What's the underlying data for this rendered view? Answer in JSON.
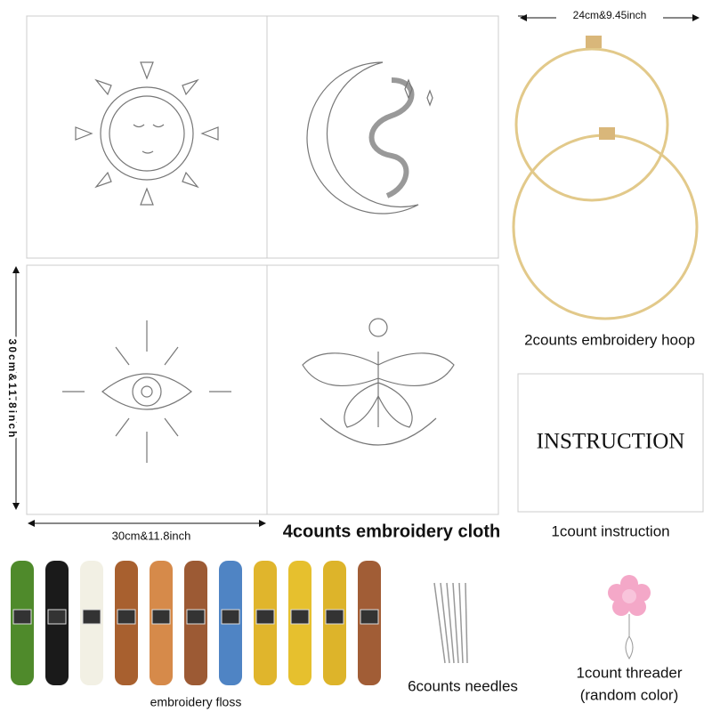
{
  "hoop": {
    "size_label": "24cm&9.45inch",
    "caption": "2counts embroidery hoop"
  },
  "cloth": {
    "height_label": "30cm&11.8inch",
    "width_label": "30cm&11.8inch",
    "caption": "4counts embroidery cloth"
  },
  "instruction": {
    "card_text": "INSTRUCTION",
    "caption": "1count instruction"
  },
  "floss": {
    "caption": "embroidery floss"
  },
  "needles": {
    "caption": "6counts needles"
  },
  "threader": {
    "caption": "1count threader",
    "note": "(random color)"
  }
}
